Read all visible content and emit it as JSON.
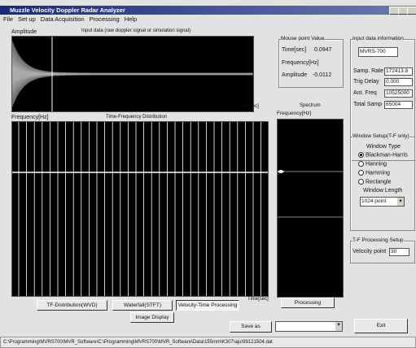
{
  "window": {
    "title": "Muzzle Velocity Doppler Radar Analyzer"
  },
  "menu": [
    "File",
    "Set up",
    "Data Acquisition",
    "Processing",
    "Help"
  ],
  "amplitude_panel": {
    "y_label": "Amplitude",
    "caption": "Input data (raw doppler signal or simulation signal)",
    "x_label": "Time[sec]"
  },
  "mouse_point": {
    "title": "Mouse point Value",
    "time_label": "Time[sec]",
    "time_value": "0.0947",
    "frequency_label": "Frequency[Hz]",
    "amplitude_label": "Amplitude",
    "amplitude_value": "-0.0112"
  },
  "input_info": {
    "title": "Input data information",
    "model": "MVRS-700",
    "samp_rate_label": "Samp. Rate",
    "samp_rate": "172413.8",
    "trig_delay_label": "Trig Delay",
    "trig_delay": "0.000",
    "ant_freq_label": "Ant. Freq",
    "ant_freq": "10525000",
    "total_samp_label": "Total Samp",
    "total_samp": "65004"
  },
  "tf_panel": {
    "y_label": "Frequency[Hz]",
    "caption": "Time-Frequency Distribution",
    "x_label": "Time[sec]"
  },
  "spectrum_panel": {
    "caption": "Spectrum",
    "y_label": "Frequency[Hz]"
  },
  "window_setup": {
    "title": "Window Setup(T-F only)",
    "type_label": "Window Type",
    "options": [
      "Blackman-Harris",
      "Hanning",
      "Hamming",
      "Rectangle"
    ],
    "length_label": "Window Length",
    "length": "1024 point"
  },
  "tf_setup": {
    "title": "T-F Processing Setup",
    "velocity_label": "Velocity point",
    "velocity": "30"
  },
  "buttons": {
    "wvd": "TF-Distribution(WVD)",
    "stft": "Waterfall(STFT)",
    "velocity": "Velocity-Time Processing",
    "image": "Image Display",
    "processing": "Processing",
    "save": "Save as",
    "exit": "Exit"
  },
  "status": "C:\\Programming\\MVRS700\\MVR_Software\\C:\\Programming\\MVRS700\\MVR_Software\\Data\\155mm\\K307\\aju\\99121504.dat"
}
